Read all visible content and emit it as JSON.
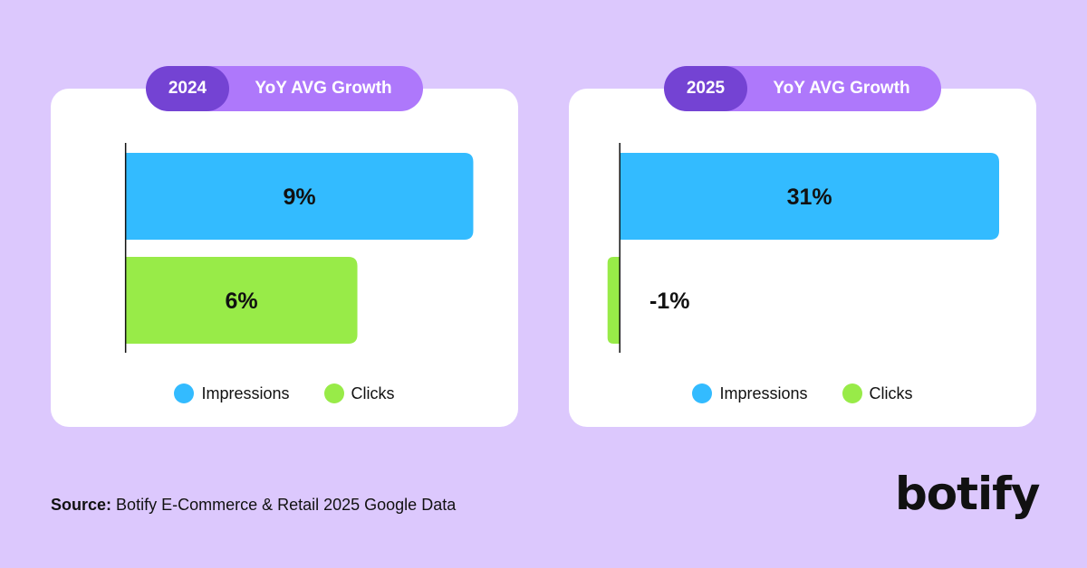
{
  "colors": {
    "background": "#dcc8fd",
    "pill_dark": "#7443d3",
    "pill_light": "#ae78fb",
    "impressions": "#33bbff",
    "clicks": "#98eb48",
    "text": "#111111",
    "axis": "#111111"
  },
  "chart_data": [
    {
      "type": "bar",
      "orientation": "horizontal",
      "year": "2024",
      "title": "YoY AVG Growth",
      "categories": [
        "Impressions",
        "Clicks"
      ],
      "values": [
        9,
        6
      ],
      "labels": [
        "9%",
        "6%"
      ],
      "xlim": [
        -1,
        9.2
      ]
    },
    {
      "type": "bar",
      "orientation": "horizontal",
      "year": "2025",
      "title": "YoY AVG Growth",
      "categories": [
        "Impressions",
        "Clicks"
      ],
      "values": [
        31,
        -1
      ],
      "labels": [
        "31%",
        "-1%"
      ],
      "xlim": [
        -1.2,
        31
      ]
    }
  ],
  "legend": {
    "impressions_label": "Impressions",
    "clicks_label": "Clicks"
  },
  "footer": {
    "source_label": "Source:",
    "source_text": "Botify E-Commerce & Retail 2025 Google Data"
  },
  "logo": {
    "text": "botify"
  }
}
